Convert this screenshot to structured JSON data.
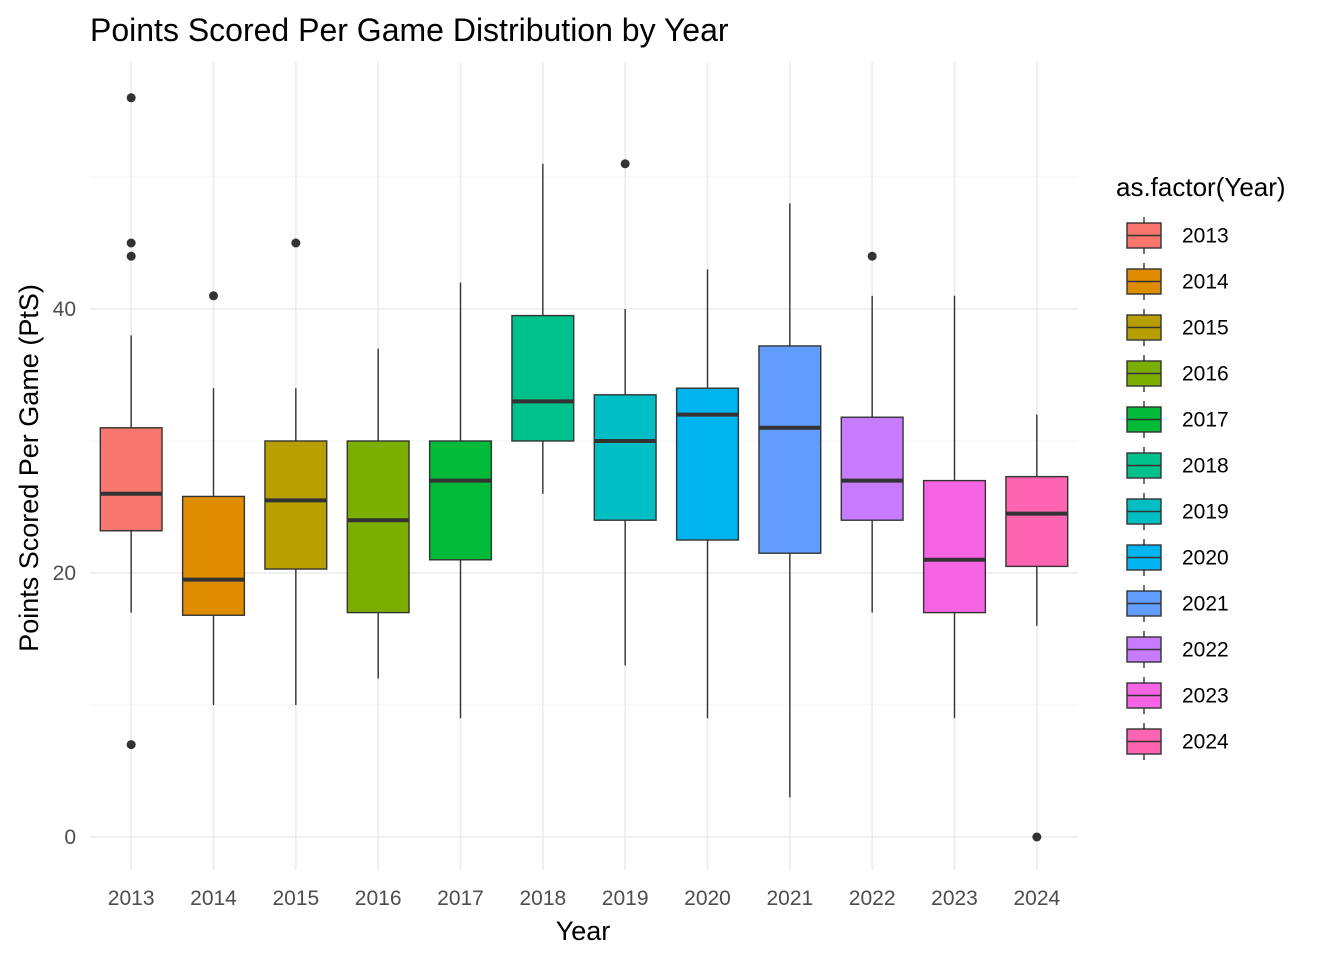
{
  "chart_data": {
    "type": "boxplot",
    "title": "Points Scored Per Game Distribution by Year",
    "xlabel": "Year",
    "ylabel": "Points Scored Per Game (PtS)",
    "ylim": [
      -2.5,
      58.5
    ],
    "yticks": [
      0,
      20,
      40
    ],
    "ytick_labels": [
      "0",
      "20",
      "40"
    ],
    "grid": true,
    "legend": {
      "title": "as.factor(Year)",
      "position": "right"
    },
    "categories": [
      "2013",
      "2014",
      "2015",
      "2016",
      "2017",
      "2018",
      "2019",
      "2020",
      "2021",
      "2022",
      "2023",
      "2024"
    ],
    "series": [
      {
        "name": "2013",
        "color": "#F8766D",
        "whisker_low": 17,
        "q1": 23.2,
        "median": 26,
        "q3": 31,
        "whisker_high": 38,
        "outliers": [
          7,
          44,
          45,
          56
        ]
      },
      {
        "name": "2014",
        "color": "#DE8C00",
        "whisker_low": 10,
        "q1": 16.8,
        "median": 19.5,
        "q3": 25.8,
        "whisker_high": 34,
        "outliers": [
          41
        ]
      },
      {
        "name": "2015",
        "color": "#B79F00",
        "whisker_low": 10,
        "q1": 20.3,
        "median": 25.5,
        "q3": 30,
        "whisker_high": 34,
        "outliers": [
          45
        ]
      },
      {
        "name": "2016",
        "color": "#7CAE00",
        "whisker_low": 12,
        "q1": 17,
        "median": 24,
        "q3": 30,
        "whisker_high": 37,
        "outliers": []
      },
      {
        "name": "2017",
        "color": "#00BA38",
        "whisker_low": 9,
        "q1": 21,
        "median": 27,
        "q3": 30,
        "whisker_high": 42,
        "outliers": []
      },
      {
        "name": "2018",
        "color": "#00C08B",
        "whisker_low": 26,
        "q1": 30,
        "median": 33,
        "q3": 39.5,
        "whisker_high": 51,
        "outliers": []
      },
      {
        "name": "2019",
        "color": "#00BFC4",
        "whisker_low": 13,
        "q1": 24,
        "median": 30,
        "q3": 33.5,
        "whisker_high": 40,
        "outliers": [
          51
        ]
      },
      {
        "name": "2020",
        "color": "#00B4F0",
        "whisker_low": 9,
        "q1": 22.5,
        "median": 32,
        "q3": 34,
        "whisker_high": 43,
        "outliers": []
      },
      {
        "name": "2021",
        "color": "#619CFF",
        "whisker_low": 3,
        "q1": 21.5,
        "median": 31,
        "q3": 37.2,
        "whisker_high": 48,
        "outliers": []
      },
      {
        "name": "2022",
        "color": "#C77CFF",
        "whisker_low": 17,
        "q1": 24,
        "median": 27,
        "q3": 31.8,
        "whisker_high": 41,
        "outliers": [
          44
        ]
      },
      {
        "name": "2023",
        "color": "#F564E3",
        "whisker_low": 9,
        "q1": 17,
        "median": 21,
        "q3": 27,
        "whisker_high": 41,
        "outliers": []
      },
      {
        "name": "2024",
        "color": "#FF64B0",
        "whisker_low": 16,
        "q1": 20.5,
        "median": 24.5,
        "q3": 27.3,
        "whisker_high": 32,
        "outliers": [
          0
        ]
      }
    ]
  }
}
